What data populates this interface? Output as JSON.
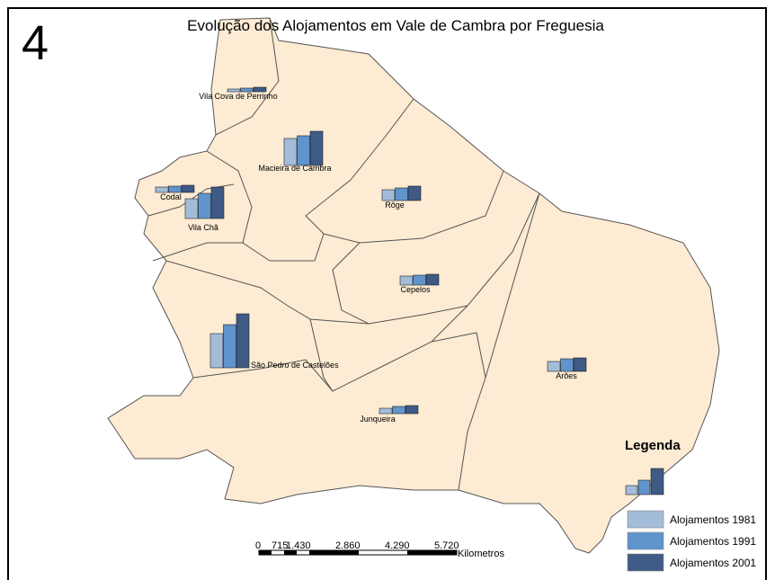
{
  "number": "4",
  "title": "Evolução dos Alojamentos em Vale de Cambra por Freguesia",
  "freguesias": [
    {
      "name": "Vila Cova de Perrinho",
      "values": [
        3,
        4,
        5
      ]
    },
    {
      "name": "Macieira de Cambra",
      "values": [
        30,
        33,
        38
      ]
    },
    {
      "name": "Codal",
      "values": [
        6,
        7,
        8
      ]
    },
    {
      "name": "Vila Chã",
      "values": [
        22,
        28,
        35
      ]
    },
    {
      "name": "Rôge",
      "values": [
        12,
        14,
        16
      ]
    },
    {
      "name": "Cepelos",
      "values": [
        10,
        11,
        12
      ]
    },
    {
      "name": "São Pedro de Castelões",
      "values": [
        38,
        48,
        60
      ]
    },
    {
      "name": "Junqueira",
      "values": [
        6,
        8,
        9
      ]
    },
    {
      "name": "Arões",
      "values": [
        11,
        14,
        15
      ]
    }
  ],
  "legend": {
    "title": "Legenda",
    "series": [
      {
        "name": "Alojamentos 1981",
        "color": "#a3bcd8"
      },
      {
        "name": "Alojamentos 1991",
        "color": "#5f94cc"
      },
      {
        "name": "Alojamentos 2001",
        "color": "#3e5a85"
      }
    ]
  },
  "scale_bar": {
    "labels": [
      "0",
      "715",
      "1.430",
      "2.860",
      "4.290",
      "5.720"
    ],
    "unit": "Kilometros"
  }
}
